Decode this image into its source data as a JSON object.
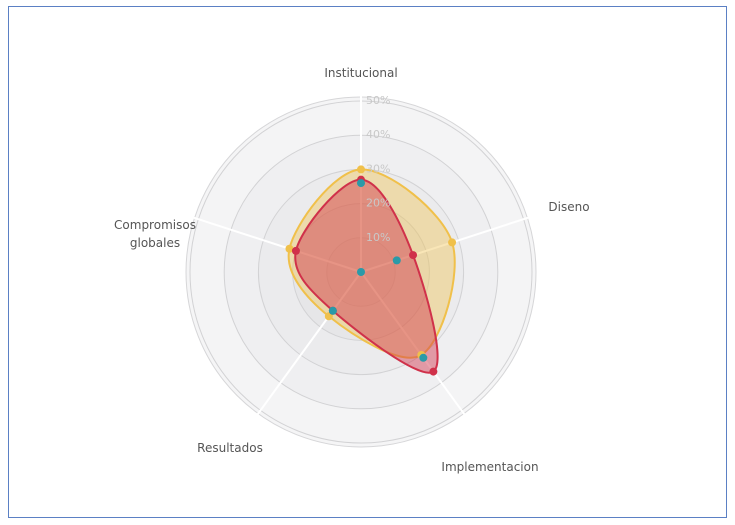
{
  "chart_data": {
    "type": "radar",
    "categories": [
      "Institucional",
      "Diseno",
      "Implementacion",
      "Resultados",
      "Compromisos globales"
    ],
    "series": [
      {
        "color": "#f0c04a",
        "area": true,
        "values": [
          30,
          28,
          30,
          16,
          22
        ]
      },
      {
        "color": "#d0314a",
        "area": true,
        "values": [
          27,
          16,
          36,
          14,
          20
        ]
      },
      {
        "color": "#2a9aa8",
        "area": false,
        "values": [
          26,
          11,
          31,
          14,
          0
        ]
      }
    ],
    "rlim": [
      0,
      50
    ],
    "rticks": [
      {
        "value": 10,
        "label": "10%"
      },
      {
        "value": 20,
        "label": "20%"
      },
      {
        "value": 30,
        "label": "30%"
      },
      {
        "value": 40,
        "label": "40%"
      },
      {
        "value": 50,
        "label": "50%"
      }
    ],
    "grid": true
  }
}
